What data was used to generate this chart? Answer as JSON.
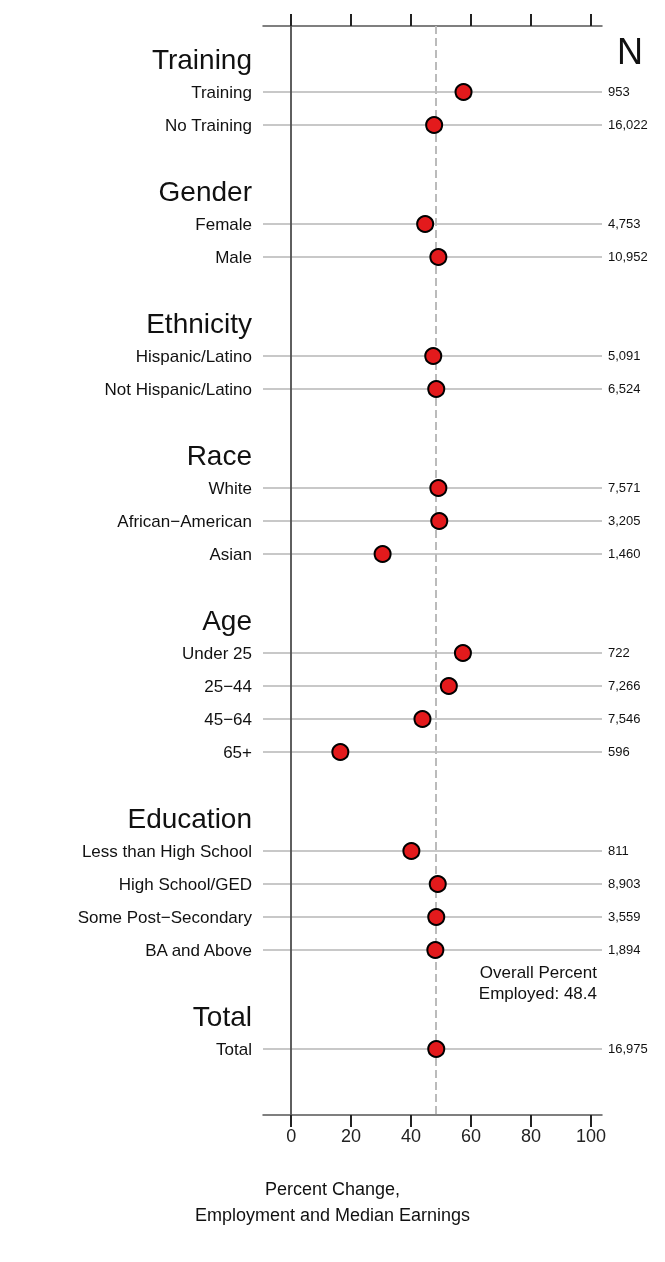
{
  "chart_data": [
    {
      "type": "scatter",
      "orientation": "horizontal",
      "categories": [
        null,
        "Training",
        "Training",
        "No Training",
        null,
        "Gender",
        "Female",
        "Male",
        null,
        "Ethnicity",
        "Hispanic/Latino",
        "Not Hispanic/Latino",
        null,
        "Race",
        "White",
        "African−American",
        "Asian",
        null,
        "Age",
        "Under 25",
        "25−44",
        "45−64",
        "65+",
        null,
        "Education",
        "Less than High School",
        "High School/GED",
        "Some Post−Secondary",
        "BA and Above",
        null,
        "Total",
        "Total",
        null,
        null
      ],
      "series": [
        {
          "color": "#e31a1c",
          "values": [
            null,
            null,
            57.5,
            47.7,
            null,
            null,
            44.7,
            49.1,
            null,
            null,
            47.4,
            48.4,
            null,
            null,
            49.1,
            49.4,
            30.5,
            null,
            null,
            57.3,
            52.6,
            43.8,
            16.4,
            null,
            null,
            40.1,
            48.9,
            48.4,
            48.1,
            null,
            null,
            48.4,
            null,
            null
          ]
        }
      ],
      "marker": "circle",
      "xlim": [
        -9.4,
        103.7
      ],
      "xticks": [
        0,
        20,
        40,
        60,
        80,
        100
      ],
      "xlabel": "Percent Change,\nEmployment and Median Earnings",
      "grid": "y",
      "ref_lines": [
        {
          "axis": "x",
          "value": 48.4,
          "label": "Overall Percent\nEmployed: 48.4",
          "color": "#bbbbbb",
          "line_style": "dashed"
        }
      ]
    },
    {
      "type": "other",
      "title": "N",
      "annotations": [
        "953",
        "16,022",
        "4,753",
        "10,952",
        "5,091",
        "6,524",
        "7,571",
        "3,205",
        "1,460",
        "722",
        "7,266",
        "7,546",
        "596",
        "811",
        "8,903",
        "3,559",
        "1,894",
        "16,975"
      ]
    }
  ]
}
